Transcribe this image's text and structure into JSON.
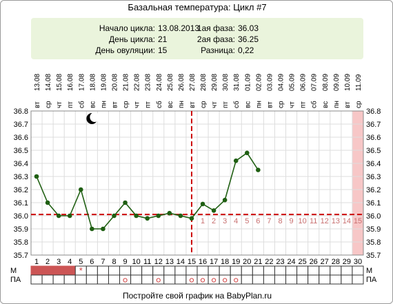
{
  "title": "Базальная температура: Цикл #7",
  "info": {
    "start_label": "Начало цикла:",
    "start_value": "13.08.2013",
    "day_label": "День цикла:",
    "day_value": "21",
    "ovulation_label": "День овуляции:",
    "ovulation_value": "15",
    "phase1_label": "1ая фаза:",
    "phase1_value": "36.03",
    "phase2_label": "2ая фаза:",
    "phase2_value": "36.25",
    "diff_label": "Разница:",
    "diff_value": "0,22"
  },
  "row_labels": {
    "m": "М",
    "pa": "ПА"
  },
  "footer": "Постройте свой график на BabyPlan.ru",
  "colors": {
    "line": "#1f5f12",
    "dashed": "#cc0000",
    "highlight": "#f7c7c7",
    "menstruation": "#cc5555",
    "grid": "#dddddd",
    "phase_numbers": "#c87070"
  },
  "chart_data": {
    "type": "line",
    "ylim": [
      35.7,
      36.8
    ],
    "yticks": [
      "35.7",
      "35.8",
      "35.9",
      "36.0",
      "36.1",
      "36.2",
      "36.3",
      "36.4",
      "36.5",
      "36.6",
      "36.7",
      "36.8"
    ],
    "days": [
      1,
      2,
      3,
      4,
      5,
      6,
      7,
      8,
      9,
      10,
      11,
      12,
      13,
      14,
      15,
      16,
      17,
      18,
      19,
      20,
      21,
      22,
      23,
      24,
      25,
      26,
      27,
      28,
      29,
      30
    ],
    "weekdays": [
      "вт",
      "ср",
      "чт",
      "пт",
      "сб",
      "вс",
      "пн",
      "вт",
      "ср",
      "чт",
      "пт",
      "сб",
      "вс",
      "пн",
      "вт",
      "ср",
      "чт",
      "пт",
      "сб",
      "вс",
      "пн",
      "вт",
      "ср",
      "чт",
      "пт",
      "сб",
      "вс",
      "пн",
      "вт",
      "ср"
    ],
    "dates": [
      "13.08",
      "14.08",
      "15.08",
      "16.08",
      "17.08",
      "18.08",
      "19.08",
      "20.08",
      "21.08",
      "22.08",
      "23.08",
      "24.08",
      "25.08",
      "26.08",
      "27.08",
      "28.08",
      "29.08",
      "30.08",
      "31.08",
      "01.09",
      "02.09",
      "03.09",
      "04.09",
      "05.09",
      "06.09",
      "07.09",
      "08.09",
      "09.09",
      "10.09",
      "11.09"
    ],
    "temperatures": [
      36.3,
      36.1,
      36.0,
      36.0,
      36.2,
      35.9,
      35.9,
      36.0,
      36.1,
      36.0,
      35.98,
      36.0,
      36.02,
      36.0,
      35.98,
      36.09,
      36.04,
      36.12,
      36.42,
      36.48,
      36.35
    ],
    "coverline": 36.01,
    "ovulation_day": 15,
    "highlight_day": 30,
    "moon_day": 6,
    "phase_day_numbers": [
      "1",
      "2",
      "3",
      "4",
      "5",
      "6",
      "7",
      "8",
      "9",
      "10",
      "11",
      "12",
      "13",
      "14",
      "15"
    ],
    "menstruation_days": [
      1,
      2,
      3,
      4
    ],
    "star_day": 5,
    "pa_days": [
      9,
      12,
      15,
      16,
      17,
      18,
      19
    ]
  }
}
